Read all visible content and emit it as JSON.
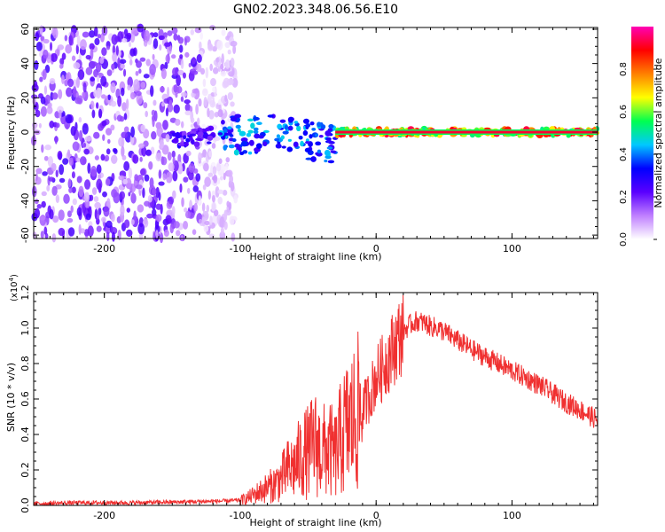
{
  "title": "GN02.2023.348.06.56.E10",
  "chart_data": [
    {
      "type": "heatmap",
      "title": "GN02.2023.348.06.56.E10",
      "xlabel": "Height of straight line (km)",
      "ylabel": "Frequency (Hz)",
      "xlim": [
        -252,
        163
      ],
      "ylim": [
        -62,
        61
      ],
      "x_ticks": [
        "-200",
        "-100",
        "0",
        "100"
      ],
      "x_tick_values": [
        -200,
        -100,
        0,
        100
      ],
      "y_ticks": [
        "-60",
        "-40",
        "-20",
        "0",
        "20",
        "40",
        "60"
      ],
      "y_tick_values": [
        -60,
        -40,
        -20,
        0,
        20,
        40,
        60
      ],
      "colorbar": {
        "label": "Normalized spectral amplitude",
        "ticks": [
          "0.0",
          "0.2",
          "0.4",
          "0.6",
          "0.8"
        ],
        "tick_values": [
          0.0,
          0.2,
          0.4,
          0.6,
          0.8
        ],
        "range": [
          0,
          1
        ],
        "colormap": [
          "#ffffff",
          "#c080ff",
          "#5a00ff",
          "#0000ff",
          "#00c8ff",
          "#00ff50",
          "#ffff00",
          "#ff8000",
          "#ff0000",
          "#ff00b4"
        ]
      },
      "regions": [
        {
          "x": [
            -252,
            -103
          ],
          "freq": [
            -62,
            61
          ],
          "amplitude": "broadband scatter",
          "level": 0.12
        },
        {
          "x": [
            -150,
            -120
          ],
          "freq": [
            -5,
            4
          ],
          "level": 0.3
        },
        {
          "x": [
            -115,
            -30
          ],
          "freq": [
            -15,
            8
          ],
          "level": 0.45
        },
        {
          "x": [
            -30,
            163
          ],
          "freq": [
            -2,
            2
          ],
          "level": 0.9
        }
      ]
    },
    {
      "type": "line",
      "xlabel": "Height of straight line (km)",
      "ylabel": "SNR (10 * v/v)",
      "ylabel_multiplier": "(x10",
      "ylabel_exponent": "4",
      "ylabel_close": ")",
      "xlim": [
        -252,
        163
      ],
      "ylim": [
        0,
        1.2
      ],
      "x_ticks": [
        "-200",
        "-100",
        "0",
        "100"
      ],
      "x_tick_values": [
        -200,
        -100,
        0,
        100
      ],
      "y_ticks": [
        "0.0",
        "0.2",
        "0.4",
        "0.6",
        "0.8",
        "1.0",
        "1.2"
      ],
      "y_tick_values": [
        0.0,
        0.2,
        0.4,
        0.6,
        0.8,
        1.0,
        1.2
      ],
      "color": "#f03030",
      "series": [
        {
          "x": [
            -252,
            -220,
            -180,
            -140,
            -110,
            -100,
            -95,
            -90,
            -85,
            -80,
            -75,
            -70,
            -65,
            -60,
            -55,
            -50,
            -45,
            -40,
            -35,
            -30,
            -25,
            -20,
            -15,
            -10,
            -5,
            0,
            5,
            10,
            15,
            20,
            25,
            30,
            35,
            40,
            45,
            50,
            60,
            70,
            80,
            90,
            100,
            110,
            120,
            130,
            140,
            150,
            163
          ],
          "y": [
            0.01,
            0.015,
            0.015,
            0.02,
            0.025,
            0.03,
            0.04,
            0.06,
            0.08,
            0.1,
            0.12,
            0.15,
            0.2,
            0.22,
            0.28,
            0.3,
            0.35,
            0.3,
            0.32,
            0.28,
            0.4,
            0.45,
            0.5,
            0.55,
            0.62,
            0.72,
            0.78,
            0.85,
            0.92,
            0.98,
            1.02,
            1.04,
            1.03,
            1.01,
            1.0,
            0.98,
            0.93,
            0.88,
            0.84,
            0.8,
            0.76,
            0.72,
            0.68,
            0.63,
            0.58,
            0.54,
            0.48
          ]
        }
      ]
    }
  ]
}
